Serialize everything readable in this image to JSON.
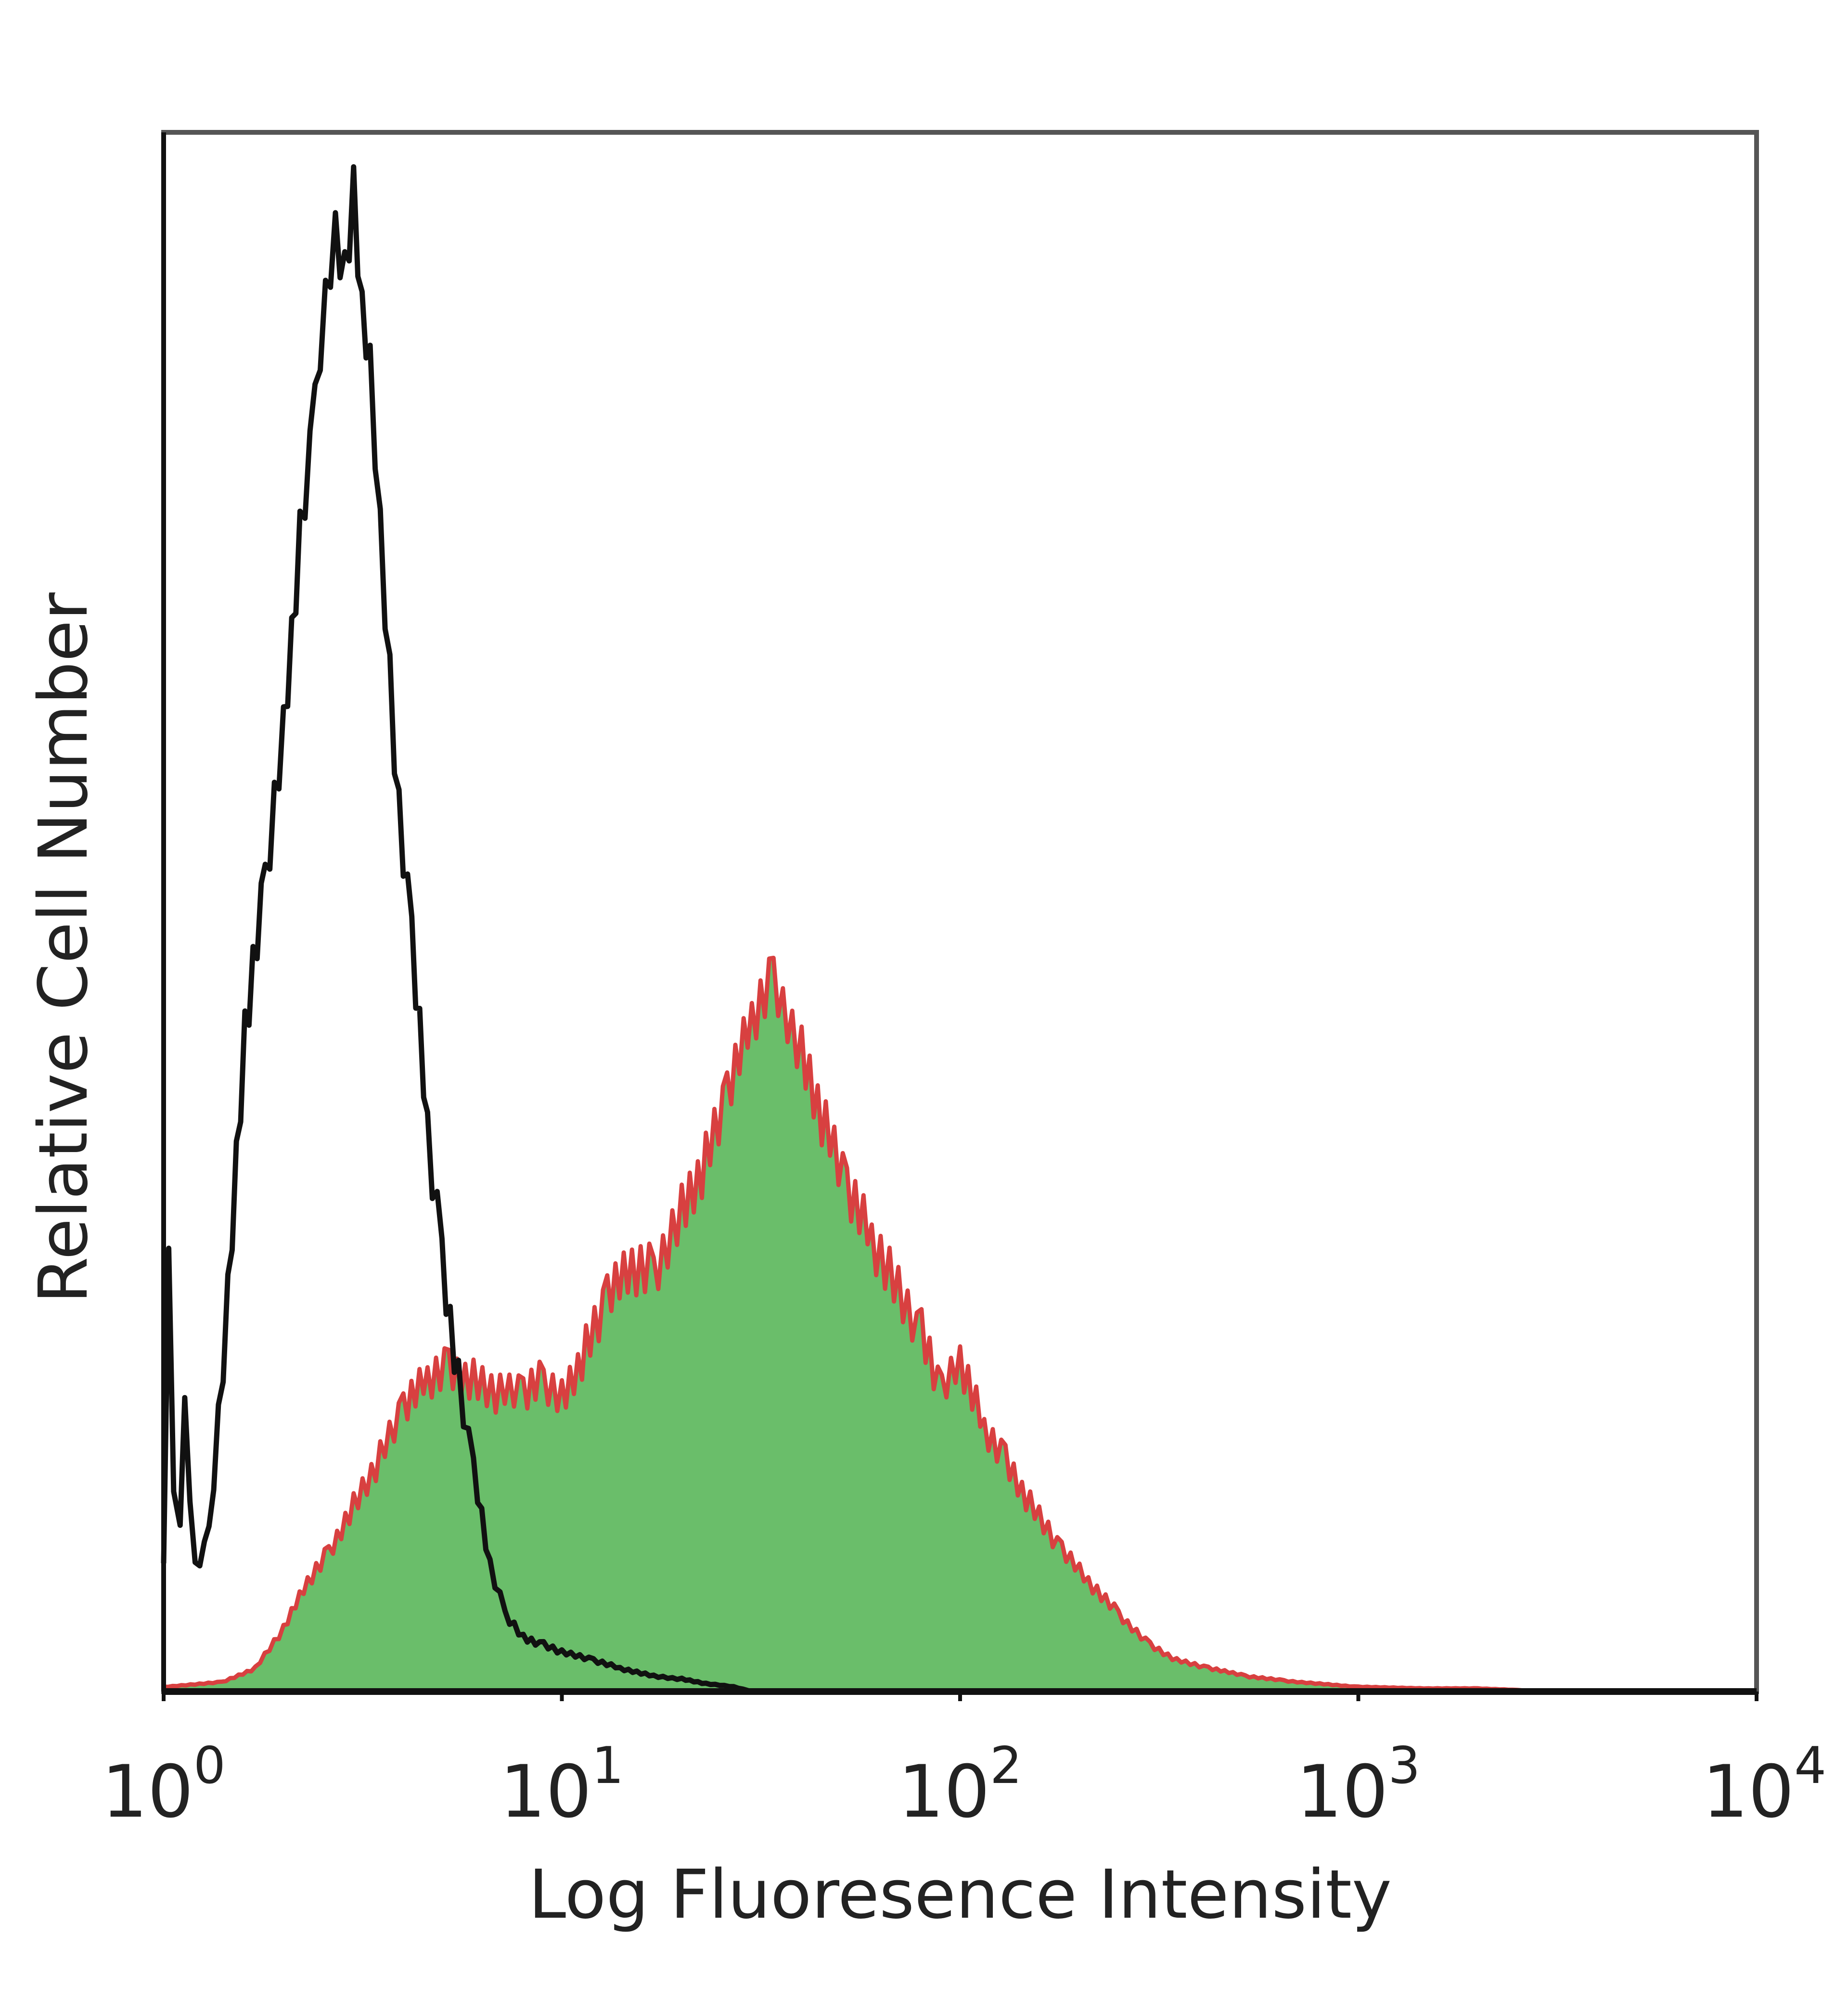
{
  "chart_data": {
    "type": "area",
    "title": "",
    "xlabel": "Log Fluoresence Intensity",
    "ylabel": "Relative Cell Number",
    "xscale": "log",
    "xlim": [
      1,
      10000
    ],
    "ylim": [
      0,
      100
    ],
    "grid": false,
    "legend": "none",
    "x_ticks": [
      {
        "base": "10",
        "exp": "0"
      },
      {
        "base": "10",
        "exp": "1"
      },
      {
        "base": "10",
        "exp": "2"
      },
      {
        "base": "10",
        "exp": "3"
      },
      {
        "base": "10",
        "exp": "4"
      }
    ],
    "series": [
      {
        "style": "line",
        "color": "#111111",
        "x": [
          1.0,
          1.03,
          1.06,
          1.1,
          1.13,
          1.2,
          1.3,
          1.45,
          1.6,
          1.8,
          2.0,
          2.2,
          2.4,
          2.55,
          2.7,
          2.85,
          3.0,
          3.15,
          3.3,
          3.5,
          3.7,
          3.9,
          4.2,
          4.6,
          5.0,
          5.5,
          6.0,
          6.6,
          7.2,
          8.0,
          9.0,
          10.0,
          12.0,
          14.0,
          17.0,
          20.0,
          23.0,
          27.0,
          30.0
        ],
        "y": [
          8,
          27,
          12,
          10,
          18,
          8,
          10,
          25,
          42,
          52,
          62,
          74,
          82,
          89,
          94,
          91,
          96,
          88,
          85,
          75,
          65,
          56,
          48,
          36,
          28,
          20,
          14,
          8,
          5,
          3.5,
          3,
          2.5,
          2,
          1.5,
          1,
          0.8,
          0.5,
          0.3,
          0
        ]
      },
      {
        "style": "filled",
        "color": "#6abe6a",
        "edge_color": "#d84040",
        "x": [
          1.0,
          1.4,
          1.7,
          2.0,
          2.3,
          2.6,
          3.0,
          3.5,
          4.0,
          4.6,
          5.2,
          6.0,
          7.0,
          8.0,
          9.0,
          10.0,
          11.5,
          13.0,
          15.0,
          17.0,
          20.0,
          23.0,
          26.0,
          30.0,
          34.0,
          40.0,
          46.0,
          52.0,
          60.0,
          70.0,
          80.0,
          90.0,
          100.0,
          115.0,
          130.0,
          150.0,
          180.0,
          210.0,
          250.0,
          300.0,
          350.0,
          420.0,
          520.0,
          650.0,
          800.0,
          1000.0,
          1500.0,
          2000.0,
          2500.0,
          3000.0,
          10000.0
        ],
        "y": [
          0.3,
          0.6,
          1.5,
          4,
          7,
          9,
          12,
          15,
          18,
          20,
          21,
          20,
          19,
          19,
          20,
          19,
          22,
          25,
          27,
          27,
          31,
          34,
          38,
          43,
          46,
          41,
          36,
          32,
          29,
          26,
          23,
          19,
          21,
          17,
          15,
          12,
          9,
          7,
          5,
          3,
          2,
          1.5,
          1,
          0.7,
          0.5,
          0.3,
          0.2,
          0.2,
          0.1,
          0,
          0
        ]
      }
    ]
  }
}
